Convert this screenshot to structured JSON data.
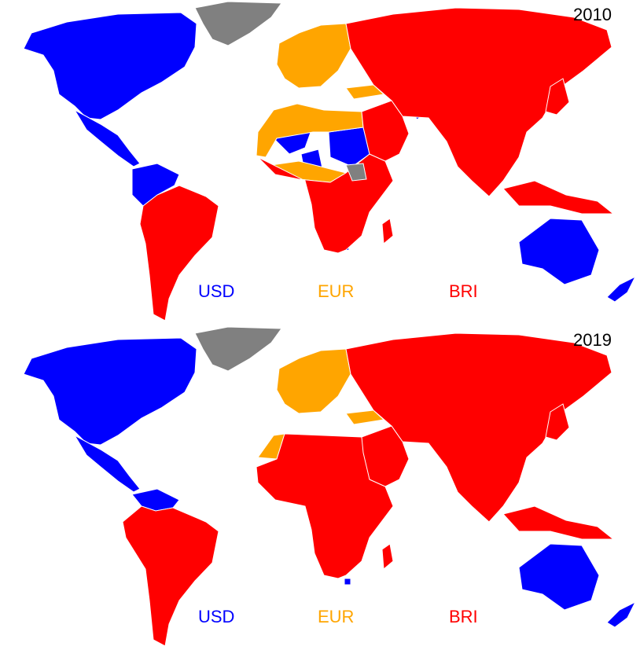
{
  "maps": [
    {
      "year": "2010"
    },
    {
      "year": "2019"
    }
  ],
  "legend": [
    {
      "label": "USD",
      "color": "#0000ff"
    },
    {
      "label": "EUR",
      "color": "#ffa500"
    },
    {
      "label": "BRI",
      "color": "#ff0000"
    }
  ],
  "colors": {
    "usd": "#0000ff",
    "eur": "#ffa500",
    "bri": "#ff0000",
    "no_data": "#808080",
    "borders": "#ffffff"
  }
}
